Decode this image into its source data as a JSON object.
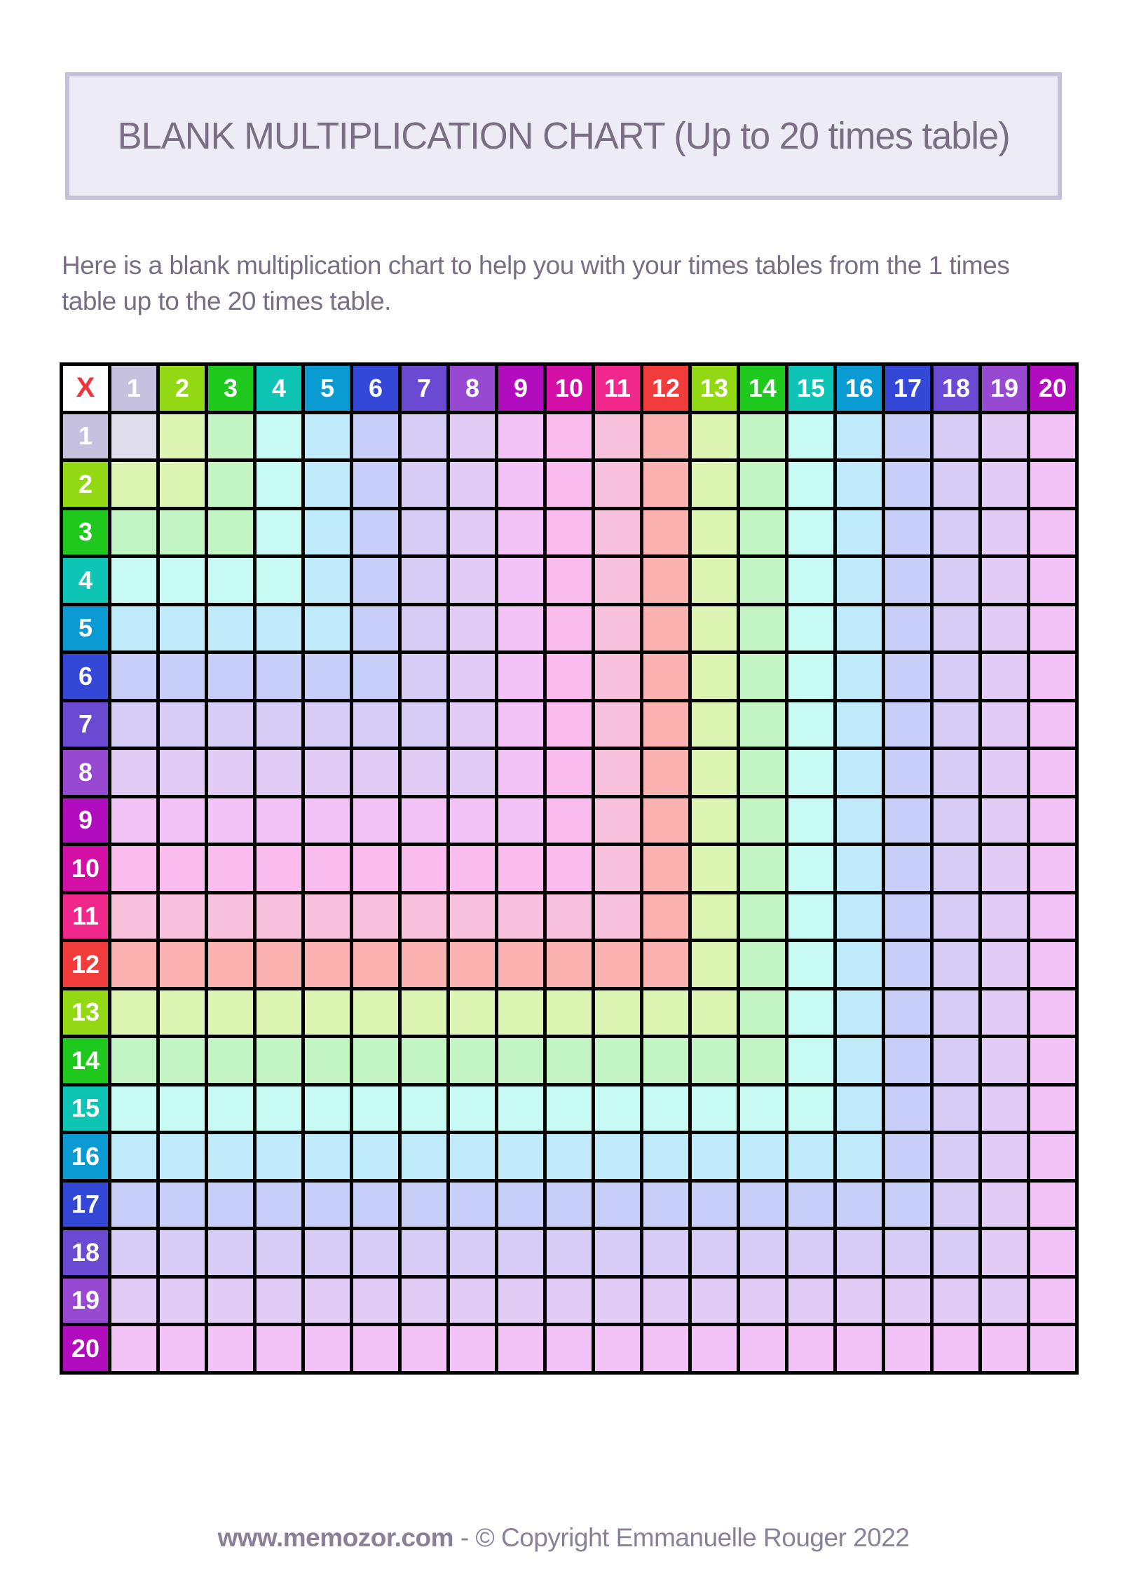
{
  "title_box": {
    "title": "BLANK MULTIPLICATION CHART (Up to 20 times table)"
  },
  "intro": {
    "text": "Here is a blank multiplication chart to help you with your times tables from the 1 times table up to the 20 times table."
  },
  "chart_data": {
    "type": "table",
    "title": "Blank multiplication chart, 1 to 20 times tables",
    "corner": {
      "label": "X",
      "text_color": "#F0343C",
      "background": "#FFFFFF"
    },
    "header_text_color": "#FFFFFF",
    "grid_line_color": "#000000",
    "cell_color_rule": "body cell at (row r, col c) is filled with the tint of header number max(r, c); all product cells are blank",
    "headers": [
      {
        "label": "1",
        "color": "#C7C1E0",
        "tint": "#DFDCEC"
      },
      {
        "label": "2",
        "color": "#92D914",
        "tint": "#DDF5B3"
      },
      {
        "label": "3",
        "color": "#1EC81D",
        "tint": "#C3F4C3"
      },
      {
        "label": "4",
        "color": "#0DC4B5",
        "tint": "#C6FAF3"
      },
      {
        "label": "5",
        "color": "#0A9BD2",
        "tint": "#BFEAFA"
      },
      {
        "label": "6",
        "color": "#3448D8",
        "tint": "#C7CEF8"
      },
      {
        "label": "7",
        "color": "#6A4AD2",
        "tint": "#D7CCF6"
      },
      {
        "label": "8",
        "color": "#9849D2",
        "tint": "#E2CBF5"
      },
      {
        "label": "9",
        "color": "#B10CBE",
        "tint": "#F3C2F7"
      },
      {
        "label": "10",
        "color": "#D40FA5",
        "tint": "#FABCEC"
      },
      {
        "label": "11",
        "color": "#F0288C",
        "tint": "#F9C2DC"
      },
      {
        "label": "12",
        "color": "#F23B3B",
        "tint": "#FCB2B0"
      },
      {
        "label": "13",
        "color": "#92D914",
        "tint": "#DDF5B3"
      },
      {
        "label": "14",
        "color": "#1EC81D",
        "tint": "#C3F4C3"
      },
      {
        "label": "15",
        "color": "#0DC4B5",
        "tint": "#C6FAF3"
      },
      {
        "label": "16",
        "color": "#0A9BD2",
        "tint": "#BFEAFA"
      },
      {
        "label": "17",
        "color": "#3448D8",
        "tint": "#C7CEF8"
      },
      {
        "label": "18",
        "color": "#6A4AD2",
        "tint": "#D7CCF6"
      },
      {
        "label": "19",
        "color": "#9849D2",
        "tint": "#E2CBF5"
      },
      {
        "label": "20",
        "color": "#B10CBE",
        "tint": "#F3C2F7"
      }
    ]
  },
  "footer": {
    "site": "www.memozor.com",
    "separator": " - ",
    "copyright": "© Copyright Emmanuelle Rouger 2022"
  }
}
